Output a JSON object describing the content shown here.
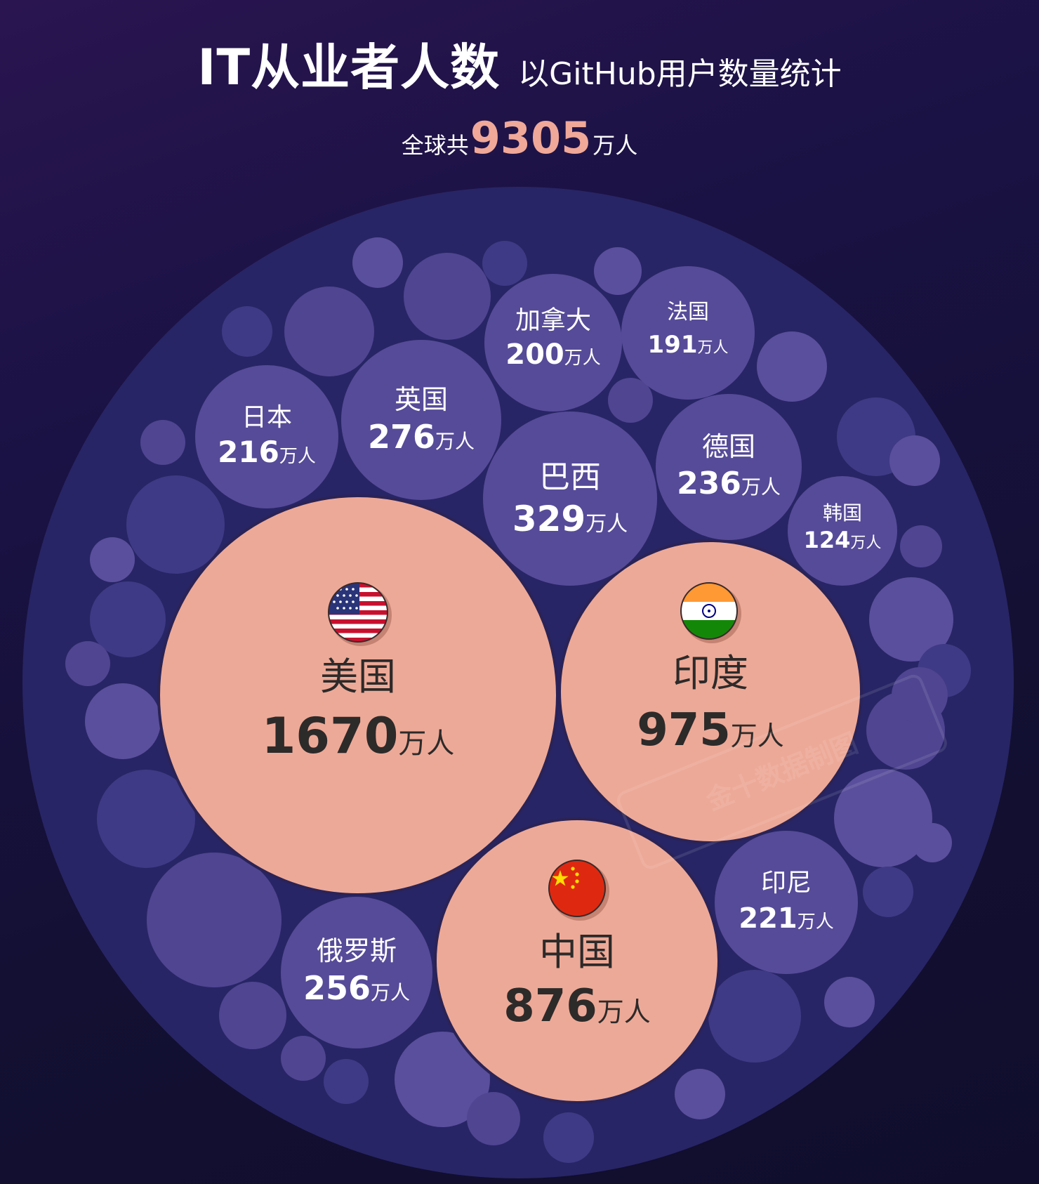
{
  "header": {
    "title": "IT从业者人数",
    "subtitle": "以GitHub用户数量统计"
  },
  "total": {
    "prefix": "全球共",
    "value": "9305",
    "unit": "万人"
  },
  "watermark": "金十数据制图",
  "colors": {
    "highlight": "#eda997",
    "bubble": "#564b98",
    "outer_circle": "#282566",
    "label_dark": "#2d2a2a",
    "label_light": "#ffffff"
  },
  "chart_data": {
    "type": "bubble",
    "unit": "万人",
    "items": [
      {
        "name": "美国",
        "value": 1670,
        "highlight": true,
        "flag": "us-flag-icon"
      },
      {
        "name": "印度",
        "value": 975,
        "highlight": true,
        "flag": "india-flag-icon"
      },
      {
        "name": "中国",
        "value": 876,
        "highlight": true,
        "flag": "china-flag-icon"
      },
      {
        "name": "巴西",
        "value": 329,
        "highlight": false
      },
      {
        "name": "英国",
        "value": 276,
        "highlight": false
      },
      {
        "name": "俄罗斯",
        "value": 256,
        "highlight": false
      },
      {
        "name": "德国",
        "value": 236,
        "highlight": false
      },
      {
        "name": "印尼",
        "value": 221,
        "highlight": false
      },
      {
        "name": "日本",
        "value": 216,
        "highlight": false
      },
      {
        "name": "加拿大",
        "value": 200,
        "highlight": false
      },
      {
        "name": "法国",
        "value": 191,
        "highlight": false
      },
      {
        "name": "韩国",
        "value": 124,
        "highlight": false
      }
    ]
  }
}
